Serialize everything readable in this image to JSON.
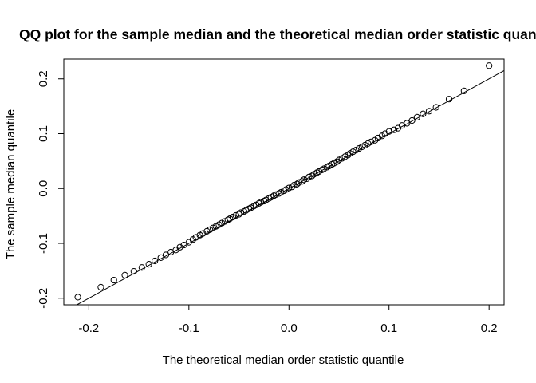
{
  "chart_data": {
    "type": "scatter",
    "title": "QQ plot for the sample median and the theoretical median order statistic quantile",
    "xlabel": "The theoretical median order statistic quantile",
    "ylabel": "The sample median quantile",
    "xlim": [
      -0.225,
      0.215
    ],
    "ylim": [
      -0.212,
      0.236
    ],
    "x_ticks": [
      -0.2,
      -0.1,
      0.0,
      0.1,
      0.2
    ],
    "x_tick_labels": [
      "-0.2",
      "-0.1",
      "0.0",
      "0.1",
      "0.2"
    ],
    "y_ticks": [
      -0.2,
      -0.1,
      0.0,
      0.1,
      0.2
    ],
    "y_tick_labels": [
      "-0.2",
      "-0.1",
      "0.0",
      "0.1",
      "0.2"
    ],
    "grid": false,
    "marker": "open-circle",
    "reference_line": {
      "x1": -0.215,
      "y1": -0.215,
      "x2": 0.215,
      "y2": 0.215
    },
    "points": {
      "x": [
        -0.211,
        -0.188,
        -0.175,
        -0.164,
        -0.155,
        -0.147,
        -0.14,
        -0.134,
        -0.128,
        -0.123,
        -0.118,
        -0.113,
        -0.109,
        -0.105,
        -0.1,
        -0.096,
        -0.093,
        -0.089,
        -0.086,
        -0.082,
        -0.079,
        -0.076,
        -0.073,
        -0.07,
        -0.067,
        -0.064,
        -0.061,
        -0.059,
        -0.056,
        -0.053,
        -0.05,
        -0.048,
        -0.045,
        -0.043,
        -0.04,
        -0.038,
        -0.035,
        -0.033,
        -0.03,
        -0.028,
        -0.025,
        -0.023,
        -0.02,
        -0.018,
        -0.015,
        -0.013,
        -0.01,
        -0.008,
        -0.005,
        -0.003,
        0.0,
        0.003,
        0.005,
        0.008,
        0.01,
        0.013,
        0.015,
        0.018,
        0.02,
        0.023,
        0.025,
        0.028,
        0.03,
        0.033,
        0.035,
        0.038,
        0.04,
        0.043,
        0.045,
        0.048,
        0.05,
        0.053,
        0.056,
        0.059,
        0.061,
        0.064,
        0.067,
        0.07,
        0.073,
        0.076,
        0.079,
        0.082,
        0.086,
        0.089,
        0.093,
        0.096,
        0.1,
        0.105,
        0.109,
        0.113,
        0.118,
        0.123,
        0.128,
        0.134,
        0.14,
        0.147,
        0.16,
        0.175,
        0.2
      ],
      "y": [
        -0.198,
        -0.18,
        -0.167,
        -0.158,
        -0.151,
        -0.144,
        -0.138,
        -0.132,
        -0.126,
        -0.121,
        -0.116,
        -0.112,
        -0.107,
        -0.103,
        -0.098,
        -0.093,
        -0.089,
        -0.085,
        -0.082,
        -0.078,
        -0.075,
        -0.072,
        -0.069,
        -0.066,
        -0.063,
        -0.06,
        -0.057,
        -0.055,
        -0.052,
        -0.049,
        -0.047,
        -0.044,
        -0.042,
        -0.04,
        -0.037,
        -0.035,
        -0.032,
        -0.03,
        -0.027,
        -0.025,
        -0.023,
        -0.021,
        -0.018,
        -0.016,
        -0.013,
        -0.011,
        -0.009,
        -0.007,
        -0.004,
        -0.002,
        0.001,
        0.003,
        0.006,
        0.008,
        0.011,
        0.013,
        0.016,
        0.018,
        0.021,
        0.023,
        0.026,
        0.029,
        0.031,
        0.034,
        0.036,
        0.039,
        0.041,
        0.044,
        0.046,
        0.049,
        0.052,
        0.055,
        0.058,
        0.061,
        0.064,
        0.067,
        0.07,
        0.073,
        0.076,
        0.079,
        0.082,
        0.085,
        0.088,
        0.092,
        0.096,
        0.1,
        0.104,
        0.107,
        0.11,
        0.115,
        0.119,
        0.124,
        0.13,
        0.136,
        0.141,
        0.148,
        0.163,
        0.178,
        0.224
      ]
    }
  }
}
